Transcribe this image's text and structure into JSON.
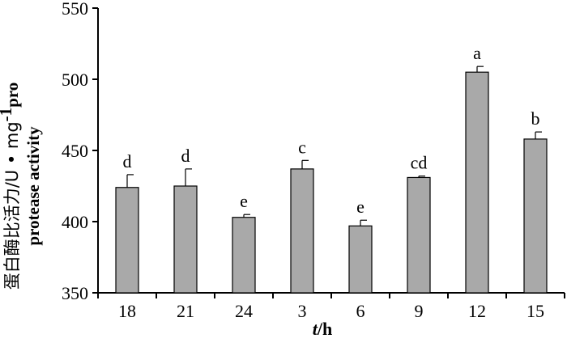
{
  "chart_data": {
    "type": "bar",
    "categories": [
      "18",
      "21",
      "24",
      "3",
      "6",
      "9",
      "12",
      "15"
    ],
    "values": [
      424,
      425,
      403,
      437,
      397,
      431,
      505,
      458
    ],
    "error": [
      9,
      12,
      2,
      6,
      4,
      1,
      4,
      5
    ],
    "significance": [
      "d",
      "d",
      "e",
      "c",
      "e",
      "cd",
      "a",
      "b"
    ],
    "ylim": [
      350,
      550
    ],
    "yticks": [
      350,
      400,
      450,
      500,
      550
    ],
    "ytick_labels": [
      "350",
      "400",
      "450",
      "500",
      "550"
    ],
    "xlabel_italic": "t",
    "xlabel_rest": "/h",
    "ylabel_line1_cn": "蛋白酶比活力/U • mg",
    "ylabel_line1_sup": "-1",
    "ylabel_line1_end": "pro",
    "ylabel_line2": "protease activity",
    "bar_color": "#a9a9a9",
    "grid": false
  }
}
